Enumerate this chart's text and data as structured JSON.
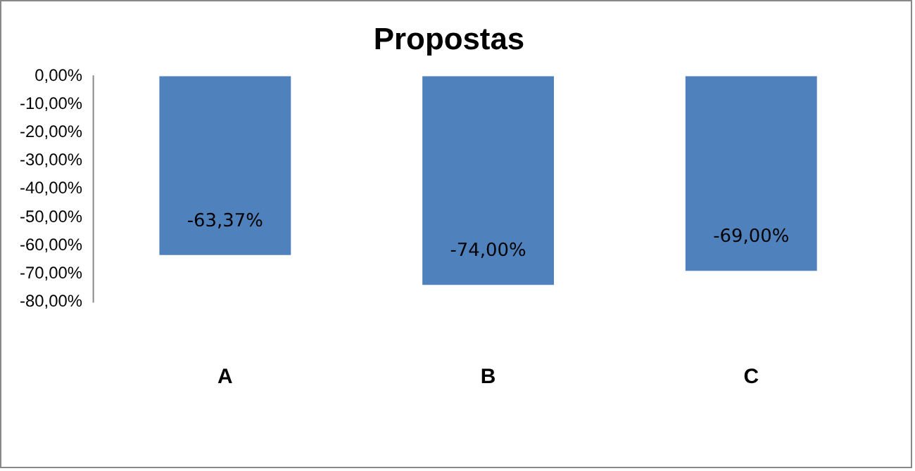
{
  "chart_data": {
    "type": "bar",
    "title": "Propostas",
    "categories": [
      "A",
      "B",
      "C"
    ],
    "values": [
      -63.37,
      -74,
      -69
    ],
    "value_labels": [
      "-63,37%",
      "-74,00%",
      "-69,00%"
    ],
    "color": "#4f81bd",
    "ylim": [
      -80,
      0
    ],
    "yticks": [
      {
        "value": 0,
        "label": "0,00%"
      },
      {
        "value": -10,
        "label": "-10,00%"
      },
      {
        "value": -20,
        "label": "-20,00%"
      },
      {
        "value": -30,
        "label": "-30,00%"
      },
      {
        "value": -40,
        "label": "-40,00%"
      },
      {
        "value": -50,
        "label": "-50,00%"
      },
      {
        "value": -60,
        "label": "-60,00%"
      },
      {
        "value": -70,
        "label": "-70,00%"
      },
      {
        "value": -80,
        "label": "-80,00%"
      }
    ],
    "grid": false,
    "legend": false
  }
}
